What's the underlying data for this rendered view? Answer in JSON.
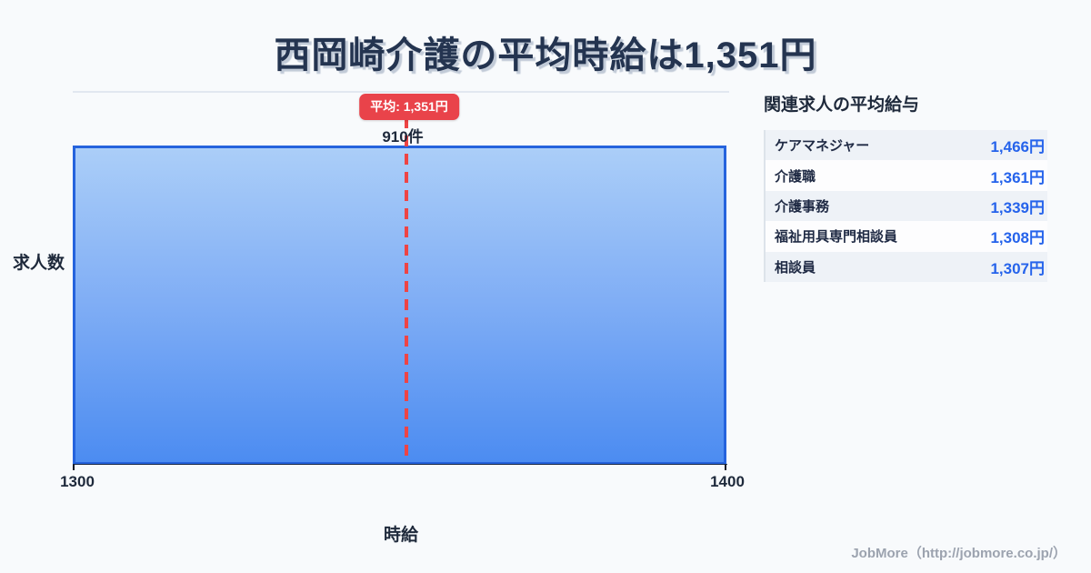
{
  "page": {
    "title": "西岡崎介護の平均時給は1,351円"
  },
  "chart": {
    "average_badge": "平均: 1,351円",
    "count_label": "910件",
    "x_tick_left": "1300",
    "x_tick_right": "1400",
    "y_axis_label": "求人数",
    "x_axis_label": "時給"
  },
  "related_jobs": {
    "heading": "関連求人の平均給与",
    "rows": [
      {
        "label": "ケアマネジャー",
        "value": "1,466円"
      },
      {
        "label": "介護職",
        "value": "1,361円"
      },
      {
        "label": "介護事務",
        "value": "1,339円"
      },
      {
        "label": "福祉用具専門相談員",
        "value": "1,308円"
      },
      {
        "label": "相談員",
        "value": "1,307円"
      }
    ]
  },
  "footer": {
    "credit": "JobMore（http://jobmore.co.jp/）"
  },
  "colors": {
    "background": "#f8fafc",
    "bar_border": "#2563dd",
    "bar_fill_top": "#abcef8",
    "bar_fill_bottom": "#4c8cf1",
    "average_red": "#e9434a",
    "value_blue": "#2563eb",
    "text_dark": "#1e293b",
    "footer_gray": "#9ca3af"
  },
  "chart_data": {
    "type": "bar",
    "title": "西岡崎介護の平均時給は1,351円",
    "categories": [
      "1300-1400"
    ],
    "values": [
      910
    ],
    "xlabel": "時給",
    "ylabel": "求人数",
    "x_range": [
      1300,
      1400
    ],
    "x_ticks": [
      1300,
      1400
    ],
    "average": 1351,
    "average_label": "平均: 1,351円",
    "bar_count_label": "910件",
    "grid": false,
    "legend": false
  }
}
